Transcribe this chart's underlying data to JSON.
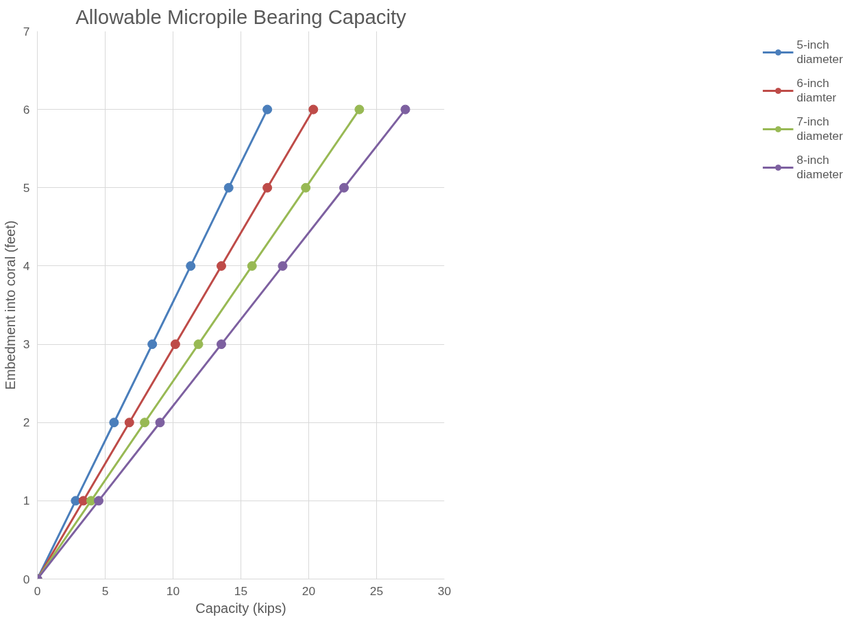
{
  "chart_data": {
    "type": "line",
    "title": "Allowable Micropile Bearing Capacity",
    "xlabel": "Capacity (kips)",
    "ylabel": "Embedment into coral (feet)",
    "xlim": [
      0,
      30
    ],
    "xticks": [
      0,
      5,
      10,
      15,
      20,
      25,
      30
    ],
    "ylim": [
      0,
      7
    ],
    "yticks": [
      0,
      1,
      2,
      3,
      4,
      5,
      6,
      7
    ],
    "grid": true,
    "legend": "right",
    "marker": "circle",
    "line_style": "solid",
    "series": [
      {
        "name": "5-inch diameter",
        "color": "#4a7ebb",
        "x": [
          0,
          2.82,
          5.65,
          8.47,
          11.3,
          14.1,
          16.95
        ],
        "values": [
          0,
          1,
          2,
          3,
          4,
          5,
          6
        ]
      },
      {
        "name": "6-inch diamter",
        "color": "#be4b48",
        "x": [
          0,
          3.39,
          6.78,
          10.17,
          13.56,
          16.95,
          20.34
        ],
        "values": [
          0,
          1,
          2,
          3,
          4,
          5,
          6
        ]
      },
      {
        "name": "7-inch diameter",
        "color": "#98b954",
        "x": [
          0,
          3.96,
          7.91,
          11.87,
          15.82,
          19.78,
          23.73
        ],
        "values": [
          0,
          1,
          2,
          3,
          4,
          5,
          6
        ]
      },
      {
        "name": "8-inch diameter",
        "color": "#7d60a0",
        "x": [
          0,
          4.52,
          9.04,
          13.56,
          18.08,
          22.6,
          27.12
        ],
        "values": [
          0,
          1,
          2,
          3,
          4,
          5,
          6
        ]
      }
    ]
  }
}
